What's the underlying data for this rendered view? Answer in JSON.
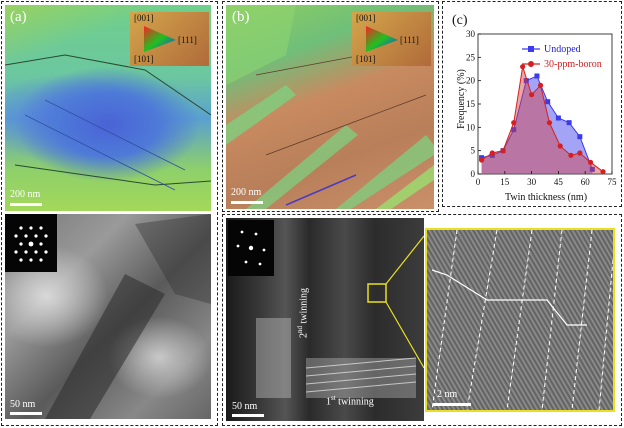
{
  "panels": {
    "a_label": "(a)",
    "b_label": "(b)",
    "c_label": "(c)",
    "a_ebsd_scale": "200 nm",
    "a_tem_scale": "50 nm",
    "b_ebsd_scale": "200 nm",
    "b_tem_scale": "50 nm",
    "hrtem_scale": "2 nm",
    "key": {
      "top": "[001]",
      "right": "[111]",
      "left": "[101]"
    },
    "twinning_second_num": "2",
    "twinning_second_sup": "nd",
    "twinning_second_word": " twinning",
    "twinning_first_num": "1",
    "twinning_first_sup": "st",
    "twinning_first_word": " twinning"
  },
  "colors": {
    "undoped": "#3a3af0",
    "boron": "#d42020",
    "inset_border": "#e8e020"
  },
  "chart_data": {
    "type": "area",
    "title": "",
    "xlabel": "Twin thickness (nm)",
    "ylabel": "Frequency (%)",
    "xlim": [
      0,
      75
    ],
    "ylim": [
      0,
      30
    ],
    "xticks": [
      0,
      15,
      30,
      45,
      60,
      75
    ],
    "yticks": [
      0,
      5,
      10,
      15,
      20,
      25,
      30
    ],
    "legend_position": "top-right",
    "series": [
      {
        "name": "Undoped",
        "marker": "square",
        "x": [
          2,
          8,
          14,
          20,
          27,
          33,
          39,
          45,
          51,
          57,
          64
        ],
        "y": [
          3.5,
          4,
          5,
          9.5,
          20,
          21,
          15.5,
          12,
          11,
          8,
          1
        ]
      },
      {
        "name": "30-ppm-boron",
        "marker": "circle",
        "x": [
          2,
          8,
          14,
          20,
          25,
          30,
          35,
          40,
          46,
          52,
          57,
          63,
          70
        ],
        "y": [
          3,
          4.5,
          5,
          11,
          23,
          17,
          19,
          11,
          6,
          4,
          4.5,
          2.5,
          0.5
        ]
      }
    ]
  }
}
